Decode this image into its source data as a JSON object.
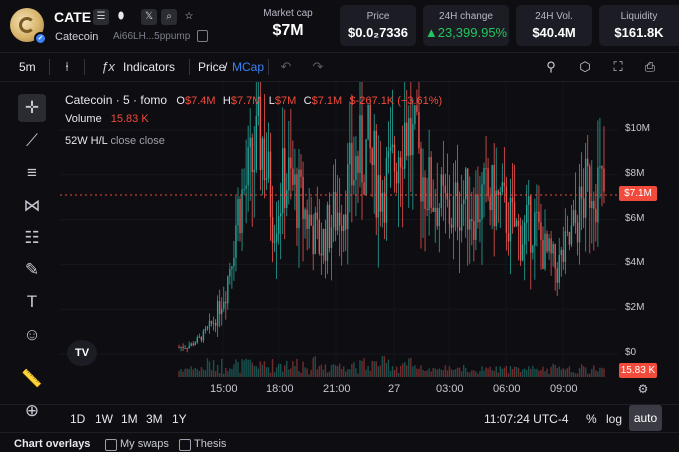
{
  "token": {
    "ticker": "CATE",
    "name": "Catecoin",
    "address": "Ai66LH...5ppump"
  },
  "stats": {
    "market_cap_label": "Market cap",
    "market_cap_value": "$7M",
    "price_label": "Price",
    "price_value": "$0.0₂7336",
    "change_label": "24H change",
    "change_value": "▲23,399.95%",
    "vol_label": "24H Vol.",
    "vol_value": "$40.4M",
    "liq_label": "Liquidity",
    "liq_value": "$161.8K"
  },
  "toolbar": {
    "interval": "5m",
    "indicators": "Indicators",
    "price": "Price",
    "slash": "/",
    "mcap": "MCap"
  },
  "legend": {
    "title": "Catecoin · 5 · fomo",
    "o_label": "O",
    "o_value": "$7.4M",
    "h_label": "H",
    "h_value": "$7.7M",
    "l_label": "L",
    "l_value": "$7M",
    "c_label": "C",
    "c_value": "$7.1M",
    "change": "$-267.1K (−3.61%)",
    "volume_label": "Volume",
    "volume_value": "15.83 K",
    "hl_label": "52W H/L",
    "hl_values": "close close"
  },
  "chart_data": {
    "type": "candlestick",
    "x_labels": [
      "15:00",
      "18:00",
      "21:00",
      "27",
      "03:00",
      "06:00",
      "09:00"
    ],
    "y_labels": [
      "$10M",
      "$8M",
      "$6M",
      "$4M",
      "$2M",
      "$0"
    ],
    "ylim": [
      0,
      10
    ],
    "y_unit": "$M",
    "last_price_label": "$7.1M",
    "last_volume_label": "15.83 K",
    "up_color": "#26a69a",
    "down_color": "#ef5350",
    "approx_close_path_$M": [
      0.3,
      0.4,
      0.8,
      1.5,
      3,
      6.5,
      8,
      9.8,
      6,
      8,
      7,
      6,
      4.8,
      6,
      7,
      8.5,
      9,
      7.5,
      8,
      10.5,
      9,
      7.5,
      6.8,
      6.2,
      7,
      6.5,
      7,
      6.8,
      6,
      5.2,
      6,
      4.5,
      3.8,
      4.8,
      6.5,
      8,
      7.1
    ]
  },
  "bottom": {
    "ranges": [
      "1D",
      "1W",
      "1M",
      "3M",
      "1Y"
    ],
    "time": "11:07:24 UTC-4",
    "percent": "%",
    "log": "log",
    "auto": "auto"
  },
  "overlays": {
    "title": "Chart overlays",
    "my_swaps": "My swaps",
    "thesis": "Thesis"
  },
  "tv_logo": "TV",
  "colors": {
    "accent_blue": "#3b82f6",
    "positive": "#22c55e",
    "negative": "#f24a3b"
  }
}
